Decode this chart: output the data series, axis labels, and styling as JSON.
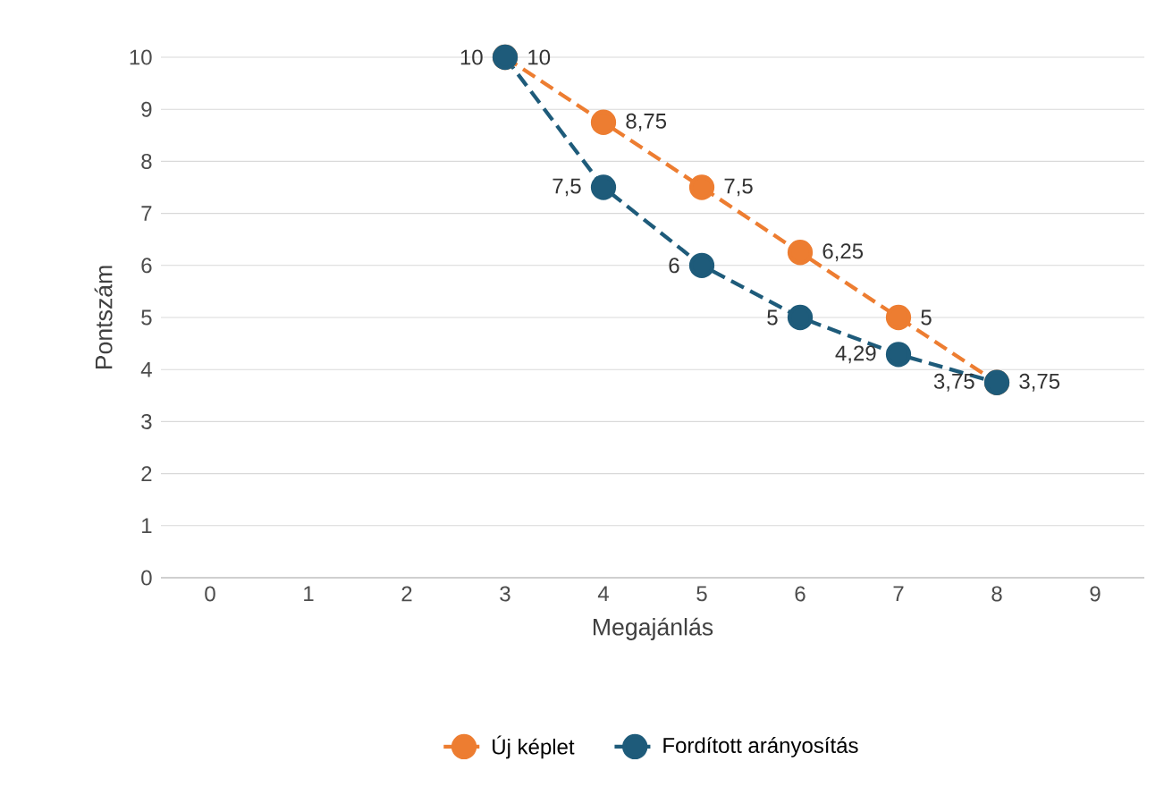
{
  "chart_data": {
    "type": "line",
    "xlabel": "Megajánlás",
    "ylabel": "Pontszám",
    "categories": [
      "0",
      "1",
      "2",
      "3",
      "4",
      "5",
      "6",
      "7",
      "8",
      "9"
    ],
    "ylim": [
      0,
      10
    ],
    "yticks": [
      0,
      1,
      2,
      3,
      4,
      5,
      6,
      7,
      8,
      9,
      10
    ],
    "grid": "y",
    "legend": "bottom",
    "marker": "circle",
    "line_style": "dashed",
    "series": [
      {
        "name": "Új képlet",
        "color": "#ed7d31",
        "values": [
          null,
          null,
          null,
          10,
          8.75,
          7.5,
          6.25,
          5,
          3.75,
          null
        ],
        "value_labels": [
          null,
          null,
          null,
          "10",
          "8,75",
          "7,5",
          "6,25",
          "5",
          "3,75",
          null
        ]
      },
      {
        "name": "Fordított arányosítás",
        "color": "#1e5b7a",
        "values": [
          null,
          null,
          null,
          10,
          7.5,
          6,
          5,
          4.29,
          3.75,
          null
        ],
        "value_labels": [
          null,
          null,
          null,
          "10",
          "7,5",
          "6",
          "5",
          "4,29",
          "3,75",
          null
        ]
      }
    ]
  }
}
